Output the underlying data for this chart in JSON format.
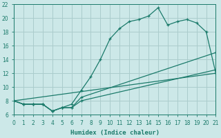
{
  "xlabel": "Humidex (Indice chaleur)",
  "bg_color": "#cce8e8",
  "grid_color": "#aacccc",
  "line_color": "#1a7a6a",
  "xlim": [
    0,
    21
  ],
  "ylim": [
    6,
    22
  ],
  "xticks": [
    0,
    1,
    2,
    3,
    4,
    5,
    6,
    7,
    8,
    9,
    10,
    11,
    12,
    13,
    14,
    15,
    16,
    17,
    18,
    19,
    20,
    21
  ],
  "yticks": [
    6,
    8,
    10,
    12,
    14,
    16,
    18,
    20,
    22
  ],
  "line1_x": [
    0,
    1,
    2,
    3,
    4,
    5,
    6,
    7,
    8,
    9,
    10,
    11,
    12,
    13,
    14,
    15,
    16,
    17,
    18,
    19,
    20,
    21
  ],
  "line1_y": [
    8,
    7.5,
    7.5,
    7.5,
    6.5,
    7.0,
    7.5,
    9.5,
    11.5,
    14.0,
    17.0,
    18.5,
    19.5,
    19.8,
    20.3,
    21.5,
    19.0,
    19.5,
    19.8,
    19.3,
    18.0,
    12.0
  ],
  "line2_x": [
    0,
    1,
    2,
    3,
    4,
    5,
    6,
    7,
    21
  ],
  "line2_y": [
    8,
    7.5,
    7.5,
    7.5,
    6.5,
    7.0,
    7.0,
    8.5,
    15.0
  ],
  "line3_x": [
    0,
    1,
    2,
    3,
    4,
    5,
    6,
    7,
    21
  ],
  "line3_y": [
    8,
    7.5,
    7.5,
    7.5,
    6.5,
    7.0,
    7.0,
    8.0,
    12.5
  ],
  "line4_x": [
    0,
    21
  ],
  "line4_y": [
    8,
    12.0
  ]
}
